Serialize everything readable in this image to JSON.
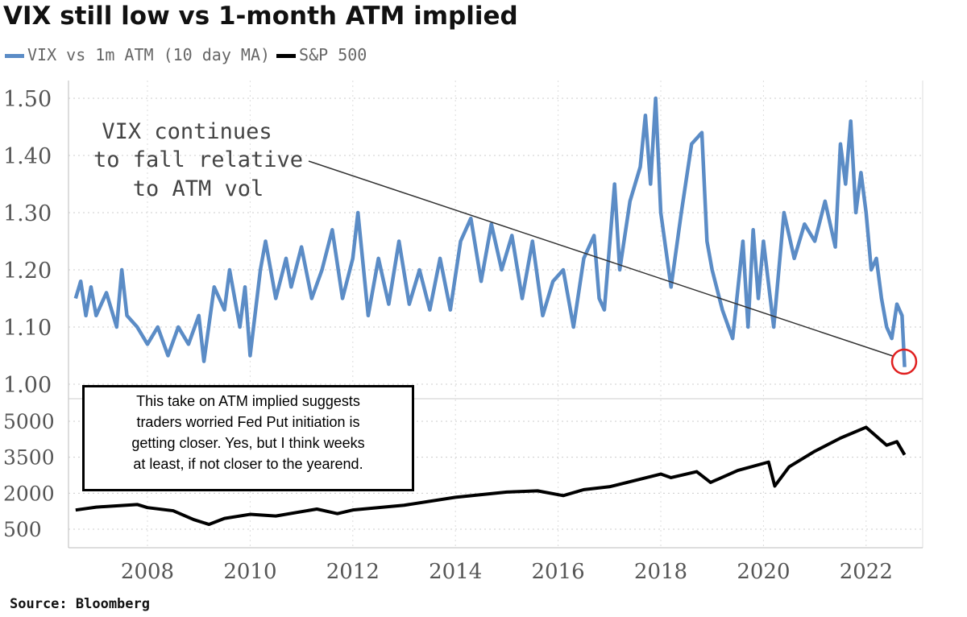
{
  "chart_data": [
    {
      "type": "line",
      "title": "VIX still low vs 1-month ATM implied",
      "legend": [
        "VIX vs 1m ATM (10 day MA)",
        "S&P 500"
      ],
      "legend_placement": "top-left",
      "ylim": [
        1.0,
        1.5
      ],
      "yticks": [
        "1.50",
        "1.40",
        "1.30",
        "1.20",
        "1.10",
        "1.00"
      ],
      "ytick_values": [
        1.5,
        1.4,
        1.3,
        1.2,
        1.1,
        1.0
      ],
      "series": [
        {
          "name": "VIX vs 1m ATM (10 day MA)",
          "color": "#5b8cc6",
          "x": [
            2006.6,
            2006.7,
            2006.8,
            2006.9,
            2007.0,
            2007.2,
            2007.4,
            2007.5,
            2007.6,
            2007.8,
            2008.0,
            2008.2,
            2008.4,
            2008.6,
            2008.8,
            2009.0,
            2009.1,
            2009.3,
            2009.5,
            2009.6,
            2009.8,
            2009.9,
            2010.0,
            2010.2,
            2010.3,
            2010.5,
            2010.7,
            2010.8,
            2011.0,
            2011.2,
            2011.4,
            2011.6,
            2011.8,
            2012.0,
            2012.1,
            2012.3,
            2012.5,
            2012.7,
            2012.9,
            2013.1,
            2013.3,
            2013.5,
            2013.7,
            2013.9,
            2014.1,
            2014.3,
            2014.5,
            2014.7,
            2014.9,
            2015.1,
            2015.3,
            2015.5,
            2015.7,
            2015.9,
            2016.1,
            2016.3,
            2016.5,
            2016.7,
            2016.8,
            2016.9,
            2017.1,
            2017.2,
            2017.4,
            2017.6,
            2017.7,
            2017.8,
            2017.9,
            2018.0,
            2018.2,
            2018.4,
            2018.6,
            2018.8,
            2018.9,
            2019.0,
            2019.2,
            2019.4,
            2019.6,
            2019.7,
            2019.8,
            2019.9,
            2020.0,
            2020.2,
            2020.4,
            2020.6,
            2020.8,
            2021.0,
            2021.2,
            2021.4,
            2021.5,
            2021.6,
            2021.7,
            2021.8,
            2021.9,
            2022.0,
            2022.1,
            2022.2,
            2022.3,
            2022.4,
            2022.5,
            2022.6,
            2022.7,
            2022.75
          ],
          "y": [
            1.15,
            1.18,
            1.12,
            1.17,
            1.12,
            1.16,
            1.1,
            1.2,
            1.12,
            1.1,
            1.07,
            1.1,
            1.05,
            1.1,
            1.07,
            1.12,
            1.04,
            1.17,
            1.13,
            1.2,
            1.1,
            1.17,
            1.05,
            1.2,
            1.25,
            1.15,
            1.22,
            1.17,
            1.24,
            1.15,
            1.2,
            1.27,
            1.15,
            1.22,
            1.3,
            1.12,
            1.22,
            1.14,
            1.25,
            1.14,
            1.2,
            1.13,
            1.22,
            1.13,
            1.25,
            1.29,
            1.18,
            1.28,
            1.2,
            1.26,
            1.15,
            1.25,
            1.12,
            1.18,
            1.2,
            1.1,
            1.22,
            1.26,
            1.15,
            1.13,
            1.35,
            1.2,
            1.32,
            1.38,
            1.47,
            1.35,
            1.5,
            1.3,
            1.17,
            1.3,
            1.42,
            1.44,
            1.25,
            1.2,
            1.13,
            1.08,
            1.25,
            1.1,
            1.27,
            1.15,
            1.25,
            1.1,
            1.3,
            1.22,
            1.28,
            1.25,
            1.32,
            1.24,
            1.42,
            1.35,
            1.46,
            1.3,
            1.37,
            1.3,
            1.2,
            1.22,
            1.15,
            1.1,
            1.08,
            1.14,
            1.12,
            1.03
          ]
        }
      ],
      "annotations": [
        "VIX continues",
        "to fall relative",
        "to ATM vol"
      ]
    },
    {
      "type": "line",
      "ylim": [
        0,
        5500
      ],
      "yticks": [
        "5000",
        "3500",
        "2000",
        "500"
      ],
      "ytick_values": [
        5000,
        3500,
        2000,
        500
      ],
      "xticks": [
        "2008",
        "2010",
        "2012",
        "2014",
        "2016",
        "2018",
        "2020",
        "2022"
      ],
      "xtick_values": [
        2008,
        2010,
        2012,
        2014,
        2016,
        2018,
        2020,
        2022
      ],
      "series": [
        {
          "name": "S&P 500",
          "color": "#000000",
          "x": [
            2006.6,
            2007.0,
            2007.8,
            2008.0,
            2008.5,
            2008.9,
            2009.2,
            2009.5,
            2010.0,
            2010.5,
            2011.3,
            2011.7,
            2012.0,
            2013.0,
            2014.0,
            2015.0,
            2015.6,
            2016.1,
            2016.5,
            2017.0,
            2018.0,
            2018.2,
            2018.7,
            2018.97,
            2019.5,
            2020.1,
            2020.22,
            2020.5,
            2021.0,
            2021.5,
            2022.0,
            2022.4,
            2022.6,
            2022.75
          ],
          "y": [
            1300,
            1420,
            1530,
            1400,
            1270,
            900,
            700,
            950,
            1120,
            1050,
            1340,
            1150,
            1300,
            1500,
            1830,
            2050,
            2100,
            1900,
            2150,
            2270,
            2800,
            2650,
            2900,
            2450,
            2950,
            3300,
            2300,
            3100,
            3750,
            4300,
            4750,
            4000,
            4150,
            3600
          ]
        }
      ]
    }
  ],
  "note": [
    "This take on ATM implied suggests",
    "traders worried Fed Put initiation is",
    "getting closer. Yes, but I think weeks",
    "at least, if not closer to the yearend."
  ],
  "source": "Source: Bloomberg"
}
